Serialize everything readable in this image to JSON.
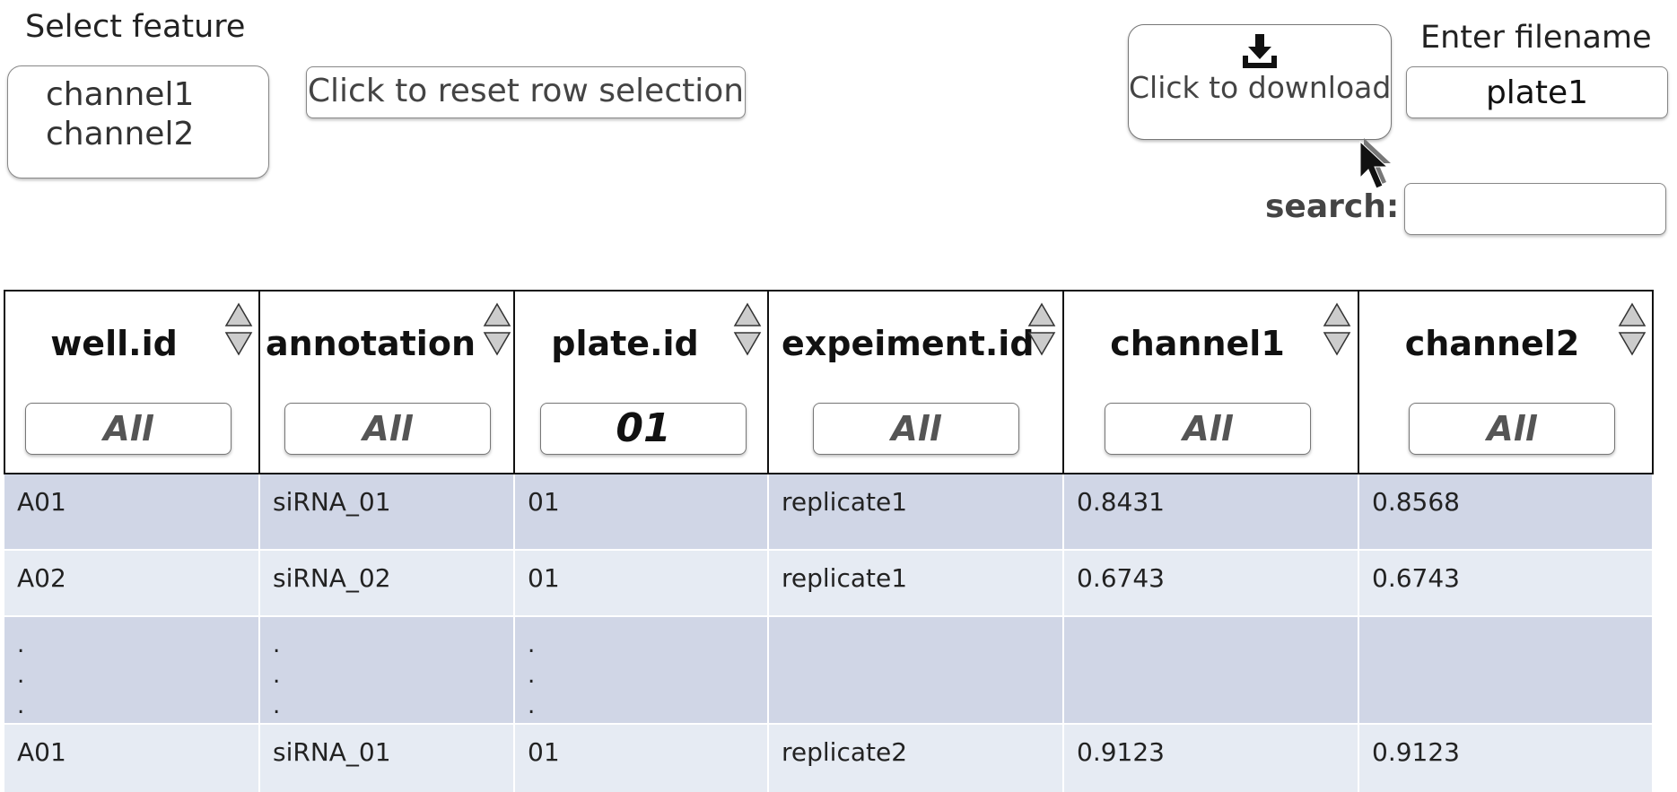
{
  "feature_select": {
    "label": "Select feature",
    "options": [
      "channel1",
      "channel2"
    ]
  },
  "reset_button": {
    "label": "Click to reset row selection"
  },
  "download_button": {
    "label": "Click to download",
    "icon": "download-icon"
  },
  "filename": {
    "label": "Enter filename",
    "value": "plate1"
  },
  "search": {
    "label": "search:",
    "value": ""
  },
  "table": {
    "columns": [
      {
        "title": "well.id",
        "filter": "All"
      },
      {
        "title": "annotation",
        "filter": "All"
      },
      {
        "title": "plate.id",
        "filter": "01"
      },
      {
        "title": "expeiment.id",
        "filter": "All"
      },
      {
        "title": "channel1",
        "filter": "All"
      },
      {
        "title": "channel2",
        "filter": "All"
      }
    ],
    "rows": [
      [
        "A01",
        "siRNA_01",
        "01",
        "replicate1",
        "0.8431",
        "0.8568"
      ],
      [
        "A02",
        "siRNA_02",
        "01",
        "replicate1",
        "0.6743",
        "0.6743"
      ],
      [
        ".\n.\n.",
        ".\n.\n.",
        ".\n.\n.",
        "",
        "",
        ""
      ],
      [
        "A01",
        "siRNA_01",
        "01",
        "replicate2",
        "0.9123",
        "0.9123"
      ]
    ]
  },
  "colors": {
    "row_odd": "#d0d6e6",
    "row_even": "#e6ebf3",
    "border": "#111111"
  }
}
